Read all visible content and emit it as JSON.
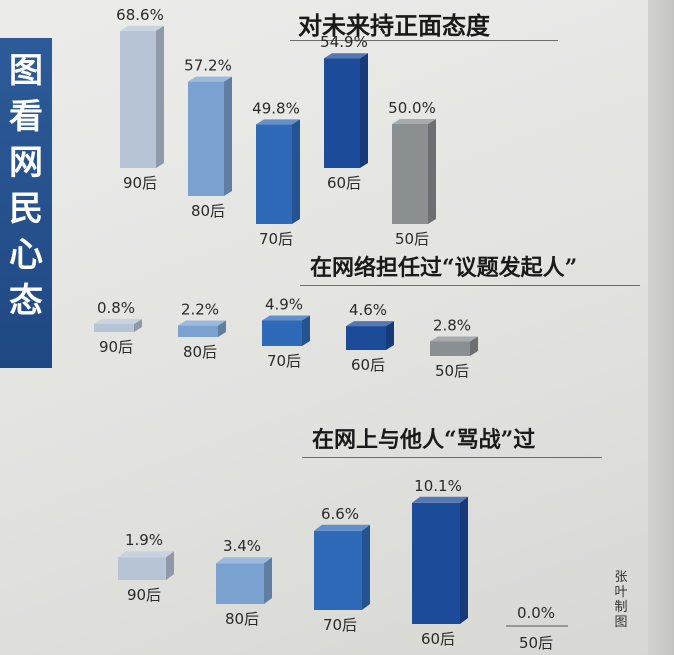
{
  "side_title": [
    "图",
    "看",
    "网",
    "民",
    "心",
    "态"
  ],
  "credit": [
    "张",
    "叶",
    "制",
    "图"
  ],
  "colors": {
    "banner": "#2a5696",
    "bar_90": "#b7c4d6",
    "bar_80": "#7aa1d0",
    "bar_70": "#2f6ab8",
    "bar_60": "#1c4b9a",
    "bar_50": "#8a8f92"
  },
  "chart_data": [
    {
      "type": "bar",
      "title": "对未来持正面态度",
      "categories": [
        "90后",
        "80后",
        "70后",
        "60后",
        "50后"
      ],
      "values": [
        68.6,
        57.2,
        49.8,
        54.9,
        50.0
      ],
      "value_labels": [
        "68.6%",
        "57.2%",
        "49.8%",
        "54.9%",
        "50.0%"
      ],
      "unit": "%"
    },
    {
      "type": "bar",
      "title": "在网络担任过“议题发起人”",
      "categories": [
        "90后",
        "80后",
        "70后",
        "60后",
        "50后"
      ],
      "values": [
        0.8,
        2.2,
        4.9,
        4.6,
        2.8
      ],
      "value_labels": [
        "0.8%",
        "2.2%",
        "4.9%",
        "4.6%",
        "2.8%"
      ],
      "unit": "%"
    },
    {
      "type": "bar",
      "title": "在网上与他人“骂战”过",
      "categories": [
        "90后",
        "80后",
        "70后",
        "60后",
        "50后"
      ],
      "values": [
        1.9,
        3.4,
        6.6,
        10.1,
        0.0
      ],
      "value_labels": [
        "1.9%",
        "3.4%",
        "6.6%",
        "10.1%",
        "0.0%"
      ],
      "unit": "%"
    }
  ]
}
